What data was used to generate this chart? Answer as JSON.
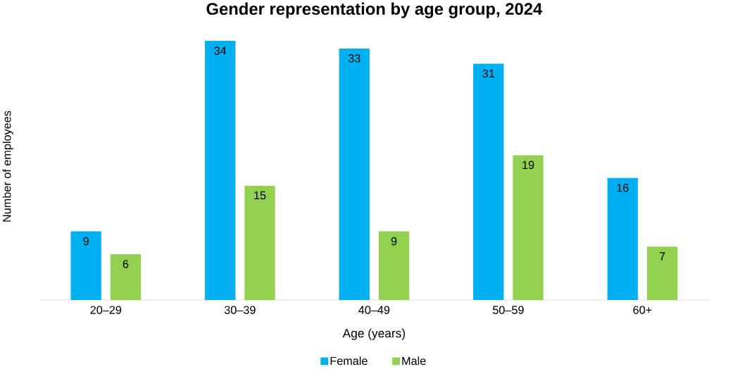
{
  "chart_data": {
    "type": "bar",
    "title": "Gender representation by age group, 2024",
    "xlabel": "Age (years)",
    "ylabel": "Number of employees",
    "categories": [
      "20–29",
      "30–39",
      "40–49",
      "50–59",
      "60+"
    ],
    "series": [
      {
        "name": "Female",
        "color": "#00b0f0",
        "values": [
          9,
          34,
          33,
          31,
          16
        ]
      },
      {
        "name": "Male",
        "color": "#92d050",
        "values": [
          6,
          15,
          9,
          19,
          7
        ]
      }
    ],
    "data_labels": true,
    "legend": "bottom"
  }
}
